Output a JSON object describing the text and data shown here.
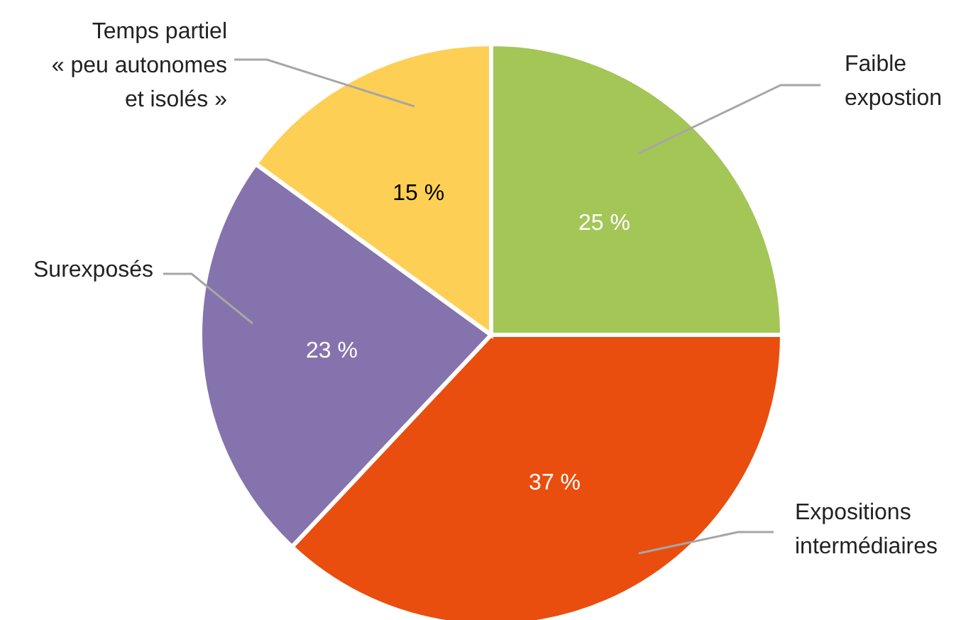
{
  "chart_data": {
    "type": "pie",
    "categories": [
      "Faible\nexpostion",
      "Expositions\nintermédiaires",
      "Surexposés",
      "Temps partiel\n« peu autonomes\net isolés »"
    ],
    "values": [
      25,
      37,
      23,
      15
    ],
    "colors": [
      "#a3c657",
      "#e94e0f",
      "#8573ad",
      "#fdd055"
    ],
    "value_labels": [
      "25 %",
      "37 %",
      "23 %",
      "15 %"
    ],
    "legend": false
  }
}
